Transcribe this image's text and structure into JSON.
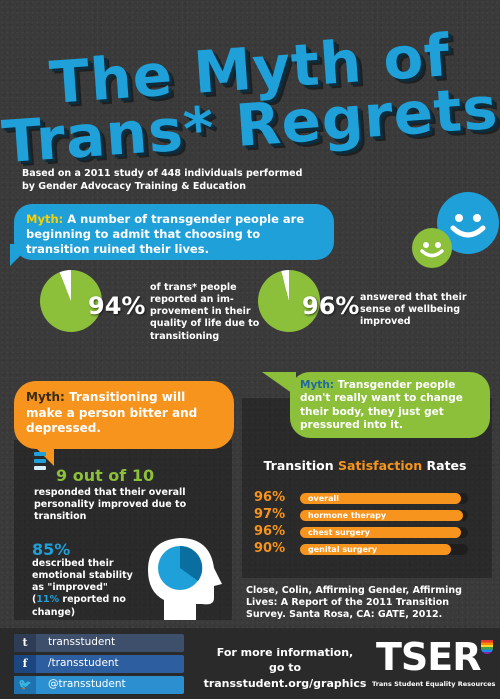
{
  "title": {
    "line1": "The Myth of",
    "line2": "Trans* Regrets"
  },
  "study_note": "Based on a 2011 study of 448 individuals performed by Gender Advocacy Training & Education",
  "myth1": {
    "label": "Myth:",
    "text": "A number of transgender people are beginning to admit that choosing to transition ruined their lives."
  },
  "stat1": {
    "percent_label": "94%",
    "value": 0.94,
    "description": "of trans* people reported an im-provement in their quality of life due to transitioning"
  },
  "stat2": {
    "percent_label": "96%",
    "value": 0.96,
    "description": "answered that their sense of wellbeing improved"
  },
  "myth2": {
    "label": "Myth:",
    "text": "Transitioning will make a person bitter and depressed."
  },
  "stat3": {
    "headline": "9 out of 10",
    "value": 0.9,
    "description": "responded that their overall personality improved due to transition"
  },
  "stat4": {
    "percent_label": "85%",
    "value": 0.85,
    "desc_main": "described their emotional stability as \"improved\"",
    "desc_open": "(",
    "desc_highlight": "11%",
    "desc_rest": " reported no change)"
  },
  "myth3": {
    "label": "Myth:",
    "text": "Transgender people don't really want to change their body, they just get pressured into it."
  },
  "rates": {
    "title_pre": "Transition ",
    "title_highlight": "Satisfaction",
    "title_post": " Rates",
    "bars": [
      {
        "percent_label": "96%",
        "value": 0.96,
        "label": "overall"
      },
      {
        "percent_label": "97%",
        "value": 0.97,
        "label": "hormone therapy"
      },
      {
        "percent_label": "96%",
        "value": 0.96,
        "label": "chest surgery"
      },
      {
        "percent_label": "90%",
        "value": 0.9,
        "label": "genital surgery"
      }
    ]
  },
  "citation": "Close, Colin, Affirming Gender, Affirming Lives: A Report of the 2011 Transition Survey. Santa Rosa, CA: GATE, 2012.",
  "footer": {
    "social": [
      {
        "icon": "tumblr-icon",
        "glyph": "t",
        "label": "transstudent"
      },
      {
        "icon": "facebook-icon",
        "glyph": "f",
        "label": "/transstudent"
      },
      {
        "icon": "twitter-icon",
        "glyph": "🐦",
        "label": "@transstudent"
      }
    ],
    "more_line1": "For more information,",
    "more_line2": "go to transstudent.org/graphics",
    "logo": "TSER",
    "logo_sub": "Trans Student Equality Resources"
  },
  "colors": {
    "blue": "#1fa0d8",
    "green": "#8cbf3a",
    "orange": "#f7941d",
    "yellow": "#f4d10a",
    "background": "#3a3a3a"
  }
}
